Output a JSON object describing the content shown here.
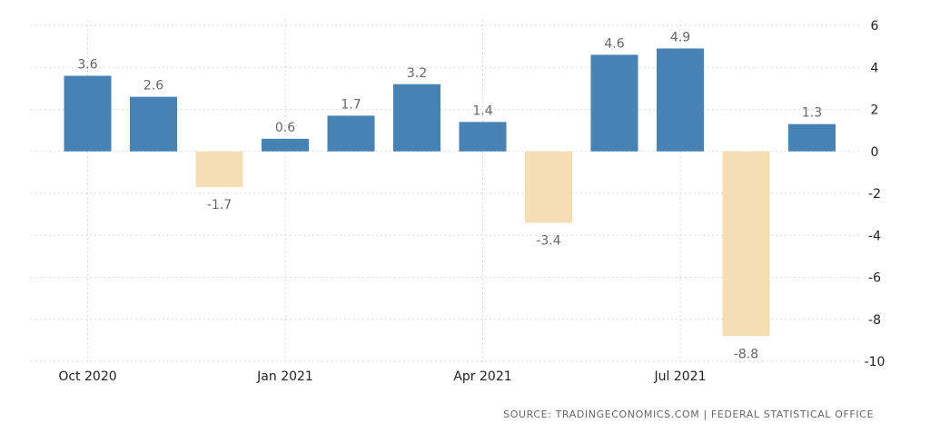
{
  "chart_data": {
    "type": "bar",
    "categories": [
      "Oct 2020",
      "Nov 2020",
      "Dec 2020",
      "Jan 2021",
      "Feb 2021",
      "Mar 2021",
      "Apr 2021",
      "May 2021",
      "Jun 2021",
      "Jul 2021",
      "Aug 2021",
      "Sep 2021"
    ],
    "values": [
      3.6,
      2.6,
      -1.7,
      0.6,
      1.7,
      3.2,
      1.4,
      -3.4,
      4.6,
      4.9,
      -8.8,
      1.3
    ],
    "data_labels": [
      "3.6",
      "2.6",
      "-1.7",
      "0.6",
      "1.7",
      "3.2",
      "1.4",
      "-3.4",
      "4.6",
      "4.9",
      "-8.8",
      "1.3"
    ],
    "x_tick_labels": [
      "Oct 2020",
      "Jan 2021",
      "Apr 2021",
      "Jul 2021"
    ],
    "x_tick_categories": [
      "Oct 2020",
      "Jan 2021",
      "Apr 2021",
      "Jul 2021"
    ],
    "y_ticks": [
      6,
      4,
      2,
      0,
      -2,
      -4,
      -6,
      -8,
      -10
    ],
    "y_tick_labels": [
      "6",
      "4",
      "2",
      "0",
      "-2",
      "-4",
      "-6",
      "-8",
      "-10"
    ],
    "ylim": [
      -10,
      6
    ],
    "y_axis_position": "right",
    "grid": true,
    "title": "",
    "xlabel": "",
    "ylabel": "",
    "colors": {
      "positive": "#4682b4",
      "negative": "#f5deb3",
      "grid": "#d9d9d9",
      "text": "#222222",
      "label": "#666666"
    }
  },
  "source": "SOURCE: TRADINGECONOMICS.COM | FEDERAL STATISTICAL OFFICE"
}
